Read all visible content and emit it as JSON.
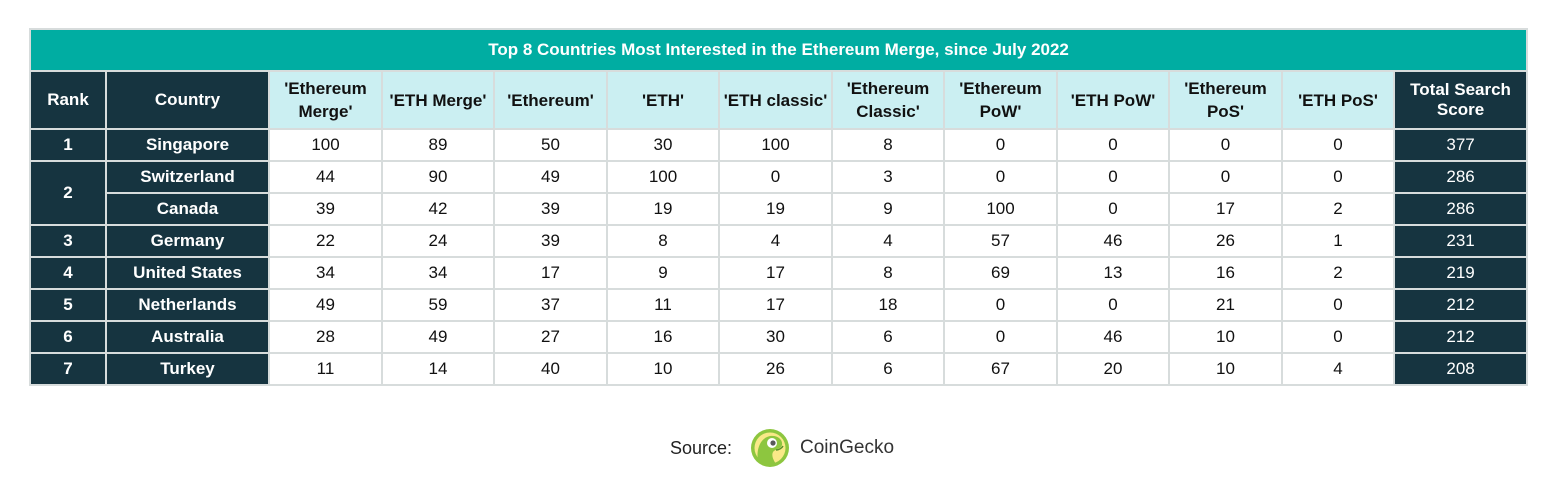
{
  "chart_data": {
    "type": "table",
    "title": "Top 8 Countries Most Interested in the Ethereum Merge, since July 2022",
    "columns": [
      "Rank",
      "Country",
      "'Ethereum Merge'",
      "'ETH Merge'",
      "'Ethereum'",
      "'ETH'",
      "'ETH classic'",
      "'Ethereum Classic'",
      "'Ethereum PoW'",
      "'ETH PoW'",
      "'Ethereum PoS'",
      "'ETH PoS'",
      "Total Search Score"
    ],
    "rows": [
      {
        "rank": "1",
        "country": "Singapore",
        "values": [
          100,
          89,
          50,
          30,
          100,
          8,
          0,
          0,
          0,
          0
        ],
        "total": 377
      },
      {
        "rank": "2",
        "country": "Switzerland",
        "values": [
          44,
          90,
          49,
          100,
          0,
          3,
          0,
          0,
          0,
          0
        ],
        "total": 286
      },
      {
        "rank": "2",
        "country": "Canada",
        "values": [
          39,
          42,
          39,
          19,
          19,
          9,
          100,
          0,
          17,
          2
        ],
        "total": 286
      },
      {
        "rank": "3",
        "country": "Germany",
        "values": [
          22,
          24,
          39,
          8,
          4,
          4,
          57,
          46,
          26,
          1
        ],
        "total": 231
      },
      {
        "rank": "4",
        "country": "United States",
        "values": [
          34,
          34,
          17,
          9,
          17,
          8,
          69,
          13,
          16,
          2
        ],
        "total": 219
      },
      {
        "rank": "5",
        "country": "Netherlands",
        "values": [
          49,
          59,
          37,
          11,
          17,
          18,
          0,
          0,
          21,
          0
        ],
        "total": 212
      },
      {
        "rank": "6",
        "country": "Australia",
        "values": [
          28,
          49,
          27,
          16,
          30,
          6,
          0,
          46,
          10,
          0
        ],
        "total": 212
      },
      {
        "rank": "7",
        "country": "Turkey",
        "values": [
          11,
          14,
          40,
          10,
          26,
          6,
          67,
          20,
          10,
          4
        ],
        "total": 208
      }
    ]
  },
  "source": {
    "label": "Source:",
    "brand": "CoinGecko",
    "logo_icon": "coingecko-gecko-icon"
  },
  "colors": {
    "title_bg": "#00ada2",
    "dark_header": "#163440",
    "light_header": "#cbeff2",
    "border": "#d7dcdc"
  }
}
